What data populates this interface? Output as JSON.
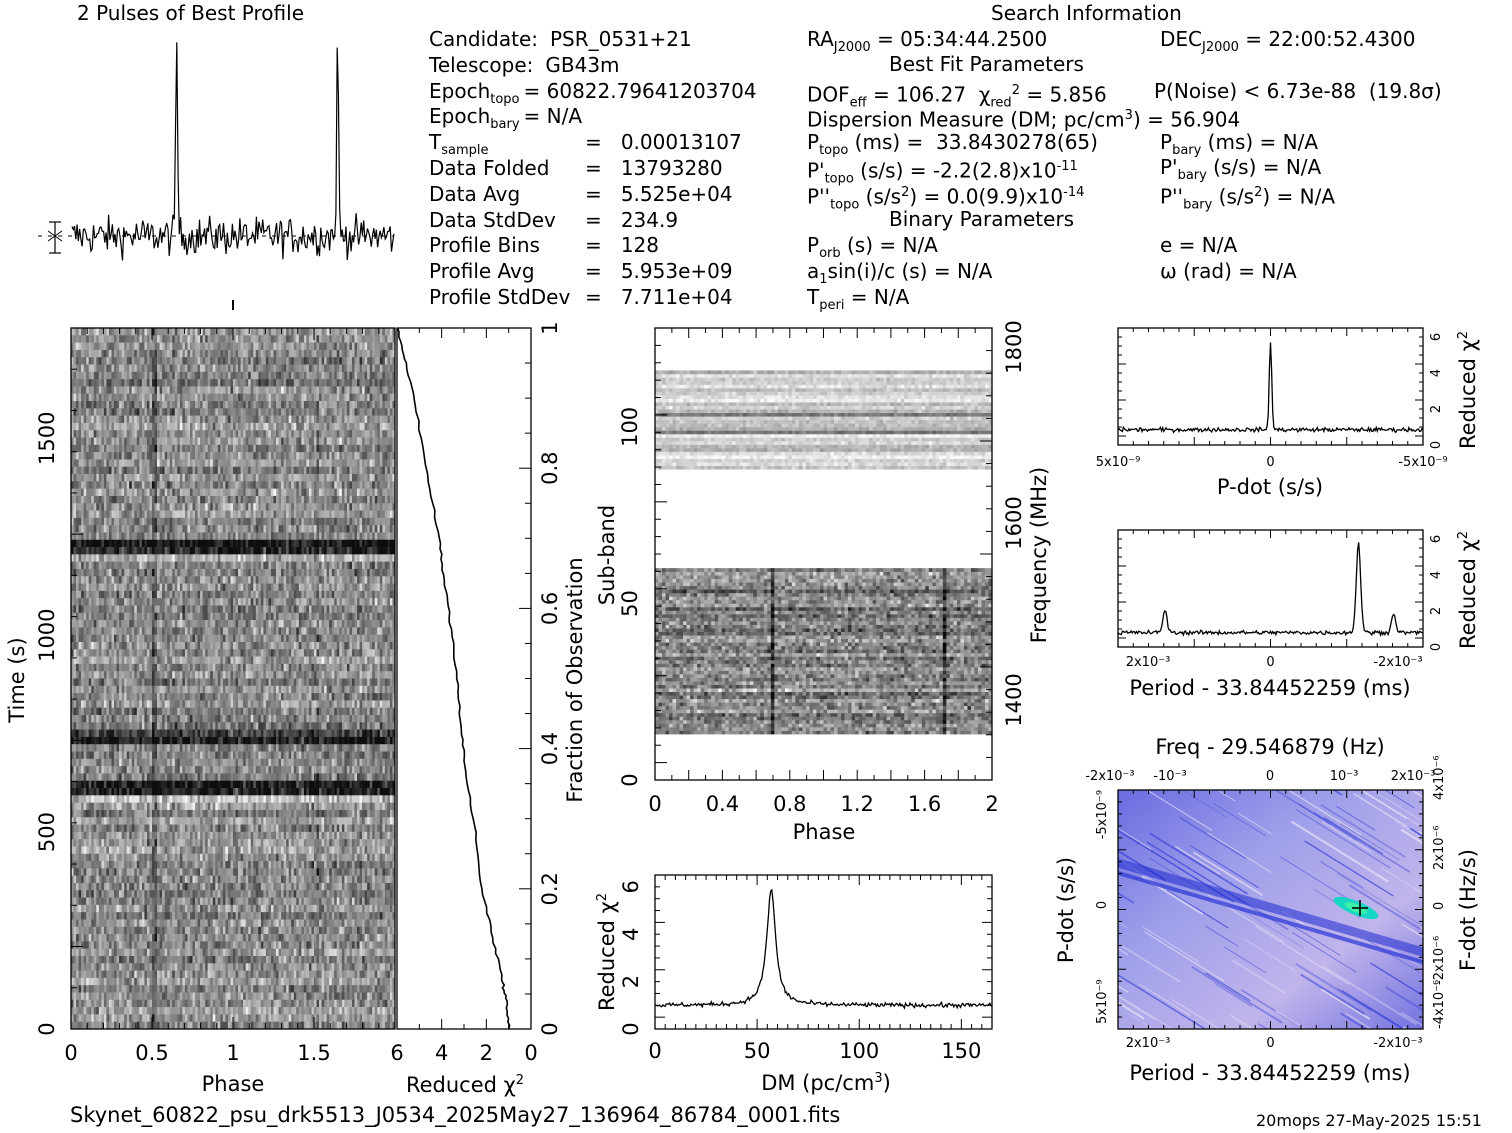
{
  "header": {
    "profile_title": "2 Pulses of Best Profile",
    "search_title": "Search Information",
    "best_fit_title": "Best Fit Parameters",
    "binary_title": "Binary Parameters"
  },
  "info_left": [
    {
      "label": "Candidate:",
      "value": "PSR_0531+21"
    },
    {
      "label": "Telescope:",
      "value": "GB43m"
    },
    {
      "label": "Epoch",
      "sub": "topo",
      "value": "= 60822.79641203704"
    },
    {
      "label": "Epoch",
      "sub": "bary",
      "value": "= N/A"
    },
    {
      "label": "T",
      "sub": "sample",
      "value": "=   0.00013107"
    },
    {
      "label": "Data Folded",
      "value": "=   13793280"
    },
    {
      "label": "Data Avg",
      "value": "=   5.525e+04"
    },
    {
      "label": "Data StdDev",
      "value": "=   234.9"
    },
    {
      "label": "Profile Bins",
      "value": "=   128"
    },
    {
      "label": "Profile Avg",
      "value": "=   5.953e+09"
    },
    {
      "label": "Profile StdDev",
      "value": "=   7.711e+04"
    }
  ],
  "info_mid": {
    "ra": "RA",
    "ra_sub": "J2000",
    "ra_val": "= 05:34:44.2500",
    "dec": "DEC",
    "dec_sub": "J2000",
    "dec_val": "= 22:00:52.4300",
    "dof": "DOF",
    "dof_sub": "eff",
    "dof_val": "= 106.27",
    "chi": "χ",
    "chi_sub": "red",
    "chi_val": "= 5.856",
    "pnoise": "P(Noise) < 6.73e-88  (19.8σ)",
    "dm": "Dispersion Measure (DM; pc/cm",
    "dm_sup": "3",
    "dm_val": ") = 56.904",
    "ptopo": "P",
    "ptopo_sub": "topo",
    "ptopo_val": " (ms) =  33.8430278(65)",
    "pbary": "P",
    "pbary_sub": "bary",
    "pbary_val": " (ms) = N/A",
    "pdtopo": "P'",
    "pdtopo_sub": "topo",
    "pdtopo_val": " (s/s) = -2.2(2.8)x10",
    "pdtopo_exp": "-11",
    "pdbary": "P'",
    "pdbary_sub": "bary",
    "pdbary_val": " (s/s) = N/A",
    "pddtopo": "P''",
    "pddtopo_sub": "topo",
    "pddtopo_val": " (s/s",
    "pddtopo_sup": "2",
    "pddtopo_val2": ") = 0.0(9.9)x10",
    "pddtopo_exp": "-14",
    "pddbary": "P''",
    "pddbary_sub": "bary",
    "pddbary_val": " (s/s",
    "pddbary_sup": "2",
    "pddbary_val2": ") = N/A",
    "porb": "P",
    "porb_sub": "orb",
    "porb_val": " (s) = N/A",
    "e_val": "e = N/A",
    "asini": "a",
    "asini_sub": "1",
    "asini_val": "sin(i)/c (s) = N/A",
    "omega_val": "ω (rad) = N/A",
    "tperi": "T",
    "tperi_sub": "peri",
    "tperi_val": " = N/A"
  },
  "footer": {
    "filename": "Skynet_60822_psu_drk5513_J0534_2025May27_136964_86784_0001.fits",
    "stamp": "20mops 27-May-2025 15:51"
  },
  "chart_data": [
    {
      "type": "line",
      "name": "profile",
      "title": "2 Pulses of Best Profile",
      "xlim": [
        0,
        2
      ],
      "peaks_phase": [
        0.65,
        1.65
      ]
    },
    {
      "type": "heatmap",
      "name": "time-phase",
      "xlabel": "Phase",
      "ylabel": "Time (s)",
      "xlim": [
        0,
        2
      ],
      "ylim": [
        0,
        1780
      ],
      "xticks": [
        "0",
        "0.5",
        "1",
        "1.5"
      ],
      "yticks": [
        "0",
        "500",
        "1000",
        "1500"
      ]
    },
    {
      "type": "line",
      "name": "cumulative-chi2",
      "xlabel": "Reduced χ",
      "xlabel_sup": "2",
      "ylabel": "Fraction of Observation",
      "xlim": [
        6,
        0
      ],
      "ylim": [
        0,
        1
      ],
      "xticks": [
        "6",
        "4",
        "2",
        "0"
      ],
      "yticks": [
        "0",
        "0.2",
        "0.4",
        "0.6",
        "0.8",
        "1"
      ],
      "x": [
        6.0,
        5.6,
        5.1,
        4.6,
        4.1,
        3.9,
        3.6,
        3.3,
        3.1,
        2.9,
        2.5,
        2.2,
        1.7,
        1.3,
        1.1,
        1.0
      ],
      "y": [
        1.0,
        0.95,
        0.88,
        0.78,
        0.7,
        0.64,
        0.58,
        0.5,
        0.42,
        0.36,
        0.28,
        0.2,
        0.13,
        0.07,
        0.04,
        0.0
      ]
    },
    {
      "type": "heatmap",
      "name": "subband-phase",
      "xlabel": "Phase",
      "ylabel": "Sub-band",
      "ylabel2": "Frequency (MHz)",
      "xlim": [
        0,
        2
      ],
      "ylim": [
        0,
        128
      ],
      "xticks": [
        "0",
        "0.4",
        "0.8",
        "1.2",
        "1.6",
        "2"
      ],
      "yticks": [
        "0",
        "50",
        "100"
      ],
      "y2ticks": [
        "1400",
        "1600",
        "1800"
      ],
      "bands": [
        [
          13,
          60
        ],
        [
          88,
          116
        ]
      ]
    },
    {
      "type": "line",
      "name": "dm-chi2",
      "xlabel": "DM (pc/cm",
      "xlabel_sup": "3",
      "xlabel_end": ")",
      "ylabel": "Reduced χ",
      "ylabel_sup": "2",
      "xlim": [
        0,
        165
      ],
      "ylim": [
        0,
        6.5
      ],
      "xticks": [
        "0",
        "50",
        "100",
        "150"
      ],
      "yticks": [
        "0",
        "2",
        "4",
        "6"
      ],
      "peak": {
        "x": 56.9,
        "y": 5.9
      }
    },
    {
      "type": "line",
      "name": "pdot-chi2",
      "xlabel": "P-dot (s/s)",
      "ylabel": "Reduced χ",
      "ylabel_sup": "2",
      "ylim": [
        0,
        6.5
      ],
      "xticks": [
        "5x10⁻⁹",
        "0",
        "-5x10⁻⁹"
      ],
      "yticks": [
        "0",
        "2",
        "4",
        "6"
      ],
      "peak": {
        "x": 0,
        "y": 5.8
      }
    },
    {
      "type": "line",
      "name": "period-chi2",
      "xlabel": "Period - 33.84452259 (ms)",
      "ylabel": "Reduced χ",
      "ylabel_sup": "2",
      "ylim": [
        0,
        6.5
      ],
      "xticks": [
        "2x10⁻³",
        "0",
        "-2x10⁻³"
      ],
      "yticks": [
        "0",
        "2",
        "4",
        "6"
      ],
      "peaks": [
        {
          "x": 0.0018,
          "y": 2.0
        },
        {
          "x": -0.0015,
          "y": 5.8
        },
        {
          "x": -0.0021,
          "y": 1.8
        }
      ]
    },
    {
      "type": "heatmap",
      "name": "period-pdot",
      "title": "Freq - 29.546879 (Hz)",
      "xlabel": "Period - 33.84452259 (ms)",
      "ylabel": "P-dot (s/s)",
      "ylabel2": "F-dot (Hz/s)",
      "xticks": [
        "2x10⁻³",
        "0",
        "-2x10⁻³"
      ],
      "xticks_top": [
        "-2x10⁻³",
        "-10⁻³",
        "0",
        "10⁻³",
        "2x10⁻³"
      ],
      "yticks": [
        "5x10⁻⁹",
        "0",
        "-5x10⁻⁹"
      ],
      "y2ticks": [
        "-4x10⁻⁶",
        "-2x10⁻⁶",
        "0",
        "2x10⁻⁶",
        "4x10⁻⁶"
      ]
    }
  ]
}
